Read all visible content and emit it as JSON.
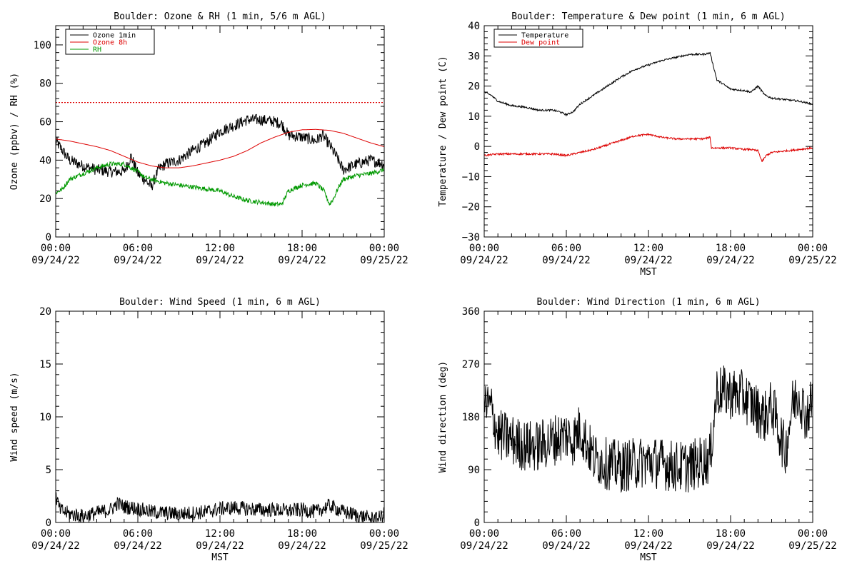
{
  "colors": {
    "black": "#000000",
    "red": "#dd0000",
    "green": "#009900",
    "background": "#ffffff"
  },
  "chart_data": [
    {
      "id": "ozone",
      "type": "line",
      "title": "Boulder: Ozone & RH (1 min, 5/6 m AGL)",
      "ylabel": "Ozone (ppbv) / RH (%)",
      "xlabel": "",
      "xlim": [
        0,
        24
      ],
      "ylim": [
        0,
        110
      ],
      "xticks": [
        {
          "v": 0,
          "label": "00:00",
          "date": "09/24/22"
        },
        {
          "v": 6,
          "label": "06:00",
          "date": "09/24/22"
        },
        {
          "v": 12,
          "label": "12:00",
          "date": "09/24/22"
        },
        {
          "v": 18,
          "label": "18:00",
          "date": "09/24/22"
        },
        {
          "v": 24,
          "label": "00:00",
          "date": "09/25/22"
        }
      ],
      "yticks": [
        {
          "v": 0,
          "label": "0"
        },
        {
          "v": 20,
          "label": "20"
        },
        {
          "v": 40,
          "label": "40"
        },
        {
          "v": 60,
          "label": "60"
        },
        {
          "v": 80,
          "label": "80"
        },
        {
          "v": 100,
          "label": "100"
        }
      ],
      "legend_position": "top-left",
      "reference_line": {
        "y": 70,
        "color": "#dd0000",
        "style": "dotted"
      },
      "series": [
        {
          "name": "Ozone 1min",
          "color": "#000000",
          "noise": 3,
          "x": [
            0,
            0.5,
            1,
            2,
            3,
            4,
            5,
            5.5,
            6,
            6.5,
            7,
            7.5,
            8,
            9,
            10,
            11,
            12,
            13,
            14,
            15,
            16,
            16.5,
            17,
            18,
            19,
            19.5,
            20,
            20.5,
            21,
            22,
            23,
            24
          ],
          "y": [
            50,
            45,
            40,
            37,
            35,
            34,
            34,
            42,
            33,
            30,
            26,
            35,
            38,
            40,
            45,
            49,
            55,
            58,
            61,
            61,
            60,
            59,
            53,
            52,
            50,
            53,
            48,
            42,
            35,
            38,
            40,
            38
          ]
        },
        {
          "name": "Ozone 8h",
          "color": "#dd0000",
          "noise": 0,
          "x": [
            0,
            1,
            2,
            3,
            4,
            5,
            6,
            7,
            8,
            9,
            10,
            11,
            12,
            13,
            14,
            15,
            16,
            17,
            18,
            19,
            20,
            21,
            22,
            23,
            24
          ],
          "y": [
            51,
            50,
            48.5,
            47,
            45,
            42,
            39,
            37,
            36,
            36,
            37,
            38.5,
            40,
            42,
            45,
            49,
            52,
            54.5,
            55.8,
            56,
            55.5,
            54,
            51.5,
            49,
            47
          ]
        },
        {
          "name": "RH",
          "color": "#009900",
          "noise": 1.2,
          "x": [
            0,
            0.5,
            1,
            2,
            3,
            4,
            5,
            6,
            6.5,
            7,
            7.5,
            8,
            9,
            10,
            11,
            12,
            13,
            14,
            15,
            16,
            16.5,
            17,
            18,
            19,
            19.3,
            19.6,
            20,
            20.3,
            20.6,
            21,
            22,
            23,
            24
          ],
          "y": [
            23,
            25,
            30,
            33,
            36,
            38,
            38,
            34,
            31,
            30,
            29,
            28,
            27,
            26,
            25,
            24,
            21,
            19,
            18,
            17,
            17,
            24,
            27,
            28,
            26,
            24,
            17,
            20,
            25,
            30,
            32,
            33,
            35
          ]
        }
      ]
    },
    {
      "id": "temperature",
      "type": "line",
      "title": "Boulder: Temperature & Dew point (1 min, 6 m AGL)",
      "ylabel": "Temperature / Dew point (C)",
      "xlabel": "MST",
      "xlim": [
        0,
        24
      ],
      "ylim": [
        -30,
        40
      ],
      "xticks": [
        {
          "v": 0,
          "label": "00:00",
          "date": "09/24/22"
        },
        {
          "v": 6,
          "label": "06:00",
          "date": "09/24/22"
        },
        {
          "v": 12,
          "label": "12:00",
          "date": "09/24/22"
        },
        {
          "v": 18,
          "label": "18:00",
          "date": "09/24/22"
        },
        {
          "v": 24,
          "label": "00:00",
          "date": "09/25/22"
        }
      ],
      "yticks": [
        {
          "v": -30,
          "label": "−30"
        },
        {
          "v": -20,
          "label": "−20"
        },
        {
          "v": -10,
          "label": "−10"
        },
        {
          "v": 0,
          "label": "0"
        },
        {
          "v": 10,
          "label": "10"
        },
        {
          "v": 20,
          "label": "20"
        },
        {
          "v": 30,
          "label": "30"
        },
        {
          "v": 40,
          "label": "40"
        }
      ],
      "legend_position": "top-left",
      "series": [
        {
          "name": "Temperature",
          "color": "#000000",
          "noise": 0.3,
          "x": [
            0,
            0.5,
            1,
            2,
            3,
            4,
            5,
            5.5,
            6,
            6.5,
            7,
            8,
            9,
            10,
            11,
            12,
            13,
            14,
            15,
            16,
            16.5,
            17,
            18,
            19,
            19.5,
            20,
            20.5,
            21,
            22,
            23,
            24
          ],
          "y": [
            18,
            17,
            15,
            13.5,
            13,
            12,
            12,
            11.5,
            10.5,
            11.5,
            14,
            17,
            20,
            23,
            25.5,
            27,
            28.5,
            29.5,
            30.5,
            30.5,
            31,
            22,
            19,
            18.5,
            18,
            20,
            17,
            16,
            15.5,
            15,
            14
          ]
        },
        {
          "name": "Dew point",
          "color": "#dd0000",
          "noise": 0.3,
          "x": [
            0,
            1,
            2,
            3,
            4,
            5,
            6,
            7,
            8,
            9,
            10,
            11,
            12,
            13,
            14,
            15,
            16,
            16.5,
            16.6,
            17,
            18,
            19,
            19.5,
            20,
            20.3,
            20.6,
            21,
            22,
            23,
            24
          ],
          "y": [
            -3,
            -2.5,
            -2.5,
            -2.5,
            -2.5,
            -2.5,
            -3,
            -2,
            -1,
            0.5,
            2,
            3.5,
            4,
            3,
            2.5,
            2.5,
            2.5,
            3,
            -0.5,
            -0.5,
            -0.5,
            -1,
            -1,
            -1.5,
            -5,
            -3,
            -2,
            -1.5,
            -1,
            -0.5
          ]
        }
      ]
    },
    {
      "id": "windspeed",
      "type": "line",
      "title": "Boulder: Wind Speed (1 min, 6 m AGL)",
      "ylabel": "Wind speed (m/s)",
      "xlabel": "MST",
      "xlim": [
        0,
        24
      ],
      "ylim": [
        0,
        20
      ],
      "xticks": [
        {
          "v": 0,
          "label": "00:00",
          "date": "09/24/22"
        },
        {
          "v": 6,
          "label": "06:00",
          "date": "09/24/22"
        },
        {
          "v": 12,
          "label": "12:00",
          "date": "09/24/22"
        },
        {
          "v": 18,
          "label": "18:00",
          "date": "09/24/22"
        },
        {
          "v": 24,
          "label": "00:00",
          "date": "09/25/22"
        }
      ],
      "yticks": [
        {
          "v": 0,
          "label": "0"
        },
        {
          "v": 5,
          "label": "5"
        },
        {
          "v": 10,
          "label": "10"
        },
        {
          "v": 15,
          "label": "15"
        },
        {
          "v": 20,
          "label": "20"
        }
      ],
      "legend_position": "none",
      "series": [
        {
          "name": "",
          "color": "#000000",
          "noise": 0.7,
          "floor": 0,
          "x": [
            0,
            0.3,
            1,
            2,
            3,
            4,
            4.5,
            5,
            6,
            7,
            8,
            9,
            10,
            11,
            12,
            13,
            14,
            15,
            16,
            17,
            18,
            19,
            20,
            21,
            22,
            23,
            23.5,
            24
          ],
          "y": [
            2.5,
            1.2,
            0.8,
            0.6,
            0.9,
            1.2,
            1.8,
            1.5,
            1.3,
            1.0,
            0.9,
            0.8,
            0.9,
            1.0,
            1.3,
            1.4,
            1.3,
            1.2,
            1.2,
            1.1,
            1.2,
            1.0,
            1.6,
            1.0,
            0.7,
            0.4,
            0.3,
            0.8
          ]
        }
      ]
    },
    {
      "id": "winddir",
      "type": "line",
      "title": "Boulder: Wind Direction (1 min, 6 m AGL)",
      "ylabel": "Wind direction (deg)",
      "xlabel": "MST",
      "xlim": [
        0,
        24
      ],
      "ylim": [
        0,
        360
      ],
      "xticks": [
        {
          "v": 0,
          "label": "00:00",
          "date": "09/24/22"
        },
        {
          "v": 6,
          "label": "06:00",
          "date": "09/24/22"
        },
        {
          "v": 12,
          "label": "12:00",
          "date": "09/24/22"
        },
        {
          "v": 18,
          "label": "18:00",
          "date": "09/24/22"
        },
        {
          "v": 24,
          "label": "00:00",
          "date": "09/25/22"
        }
      ],
      "yticks": [
        {
          "v": 0,
          "label": "0"
        },
        {
          "v": 90,
          "label": "90"
        },
        {
          "v": 180,
          "label": "180"
        },
        {
          "v": 270,
          "label": "270"
        },
        {
          "v": 360,
          "label": "360"
        }
      ],
      "legend_position": "none",
      "series": [
        {
          "name": "",
          "color": "#000000",
          "noise": 45,
          "floor": 0,
          "x": [
            0,
            0.5,
            1,
            2,
            3,
            4,
            5,
            6,
            6.5,
            7,
            8,
            9,
            10,
            11,
            12,
            13,
            14,
            15,
            16,
            16.5,
            17,
            18,
            19,
            20,
            20.5,
            21,
            22,
            22.5,
            23,
            23.5,
            24
          ],
          "y": [
            200,
            195,
            150,
            140,
            130,
            130,
            140,
            150,
            140,
            160,
            110,
            100,
            95,
            100,
            105,
            100,
            95,
            95,
            105,
            110,
            225,
            220,
            215,
            190,
            180,
            200,
            120,
            200,
            220,
            180,
            210
          ]
        }
      ]
    }
  ]
}
